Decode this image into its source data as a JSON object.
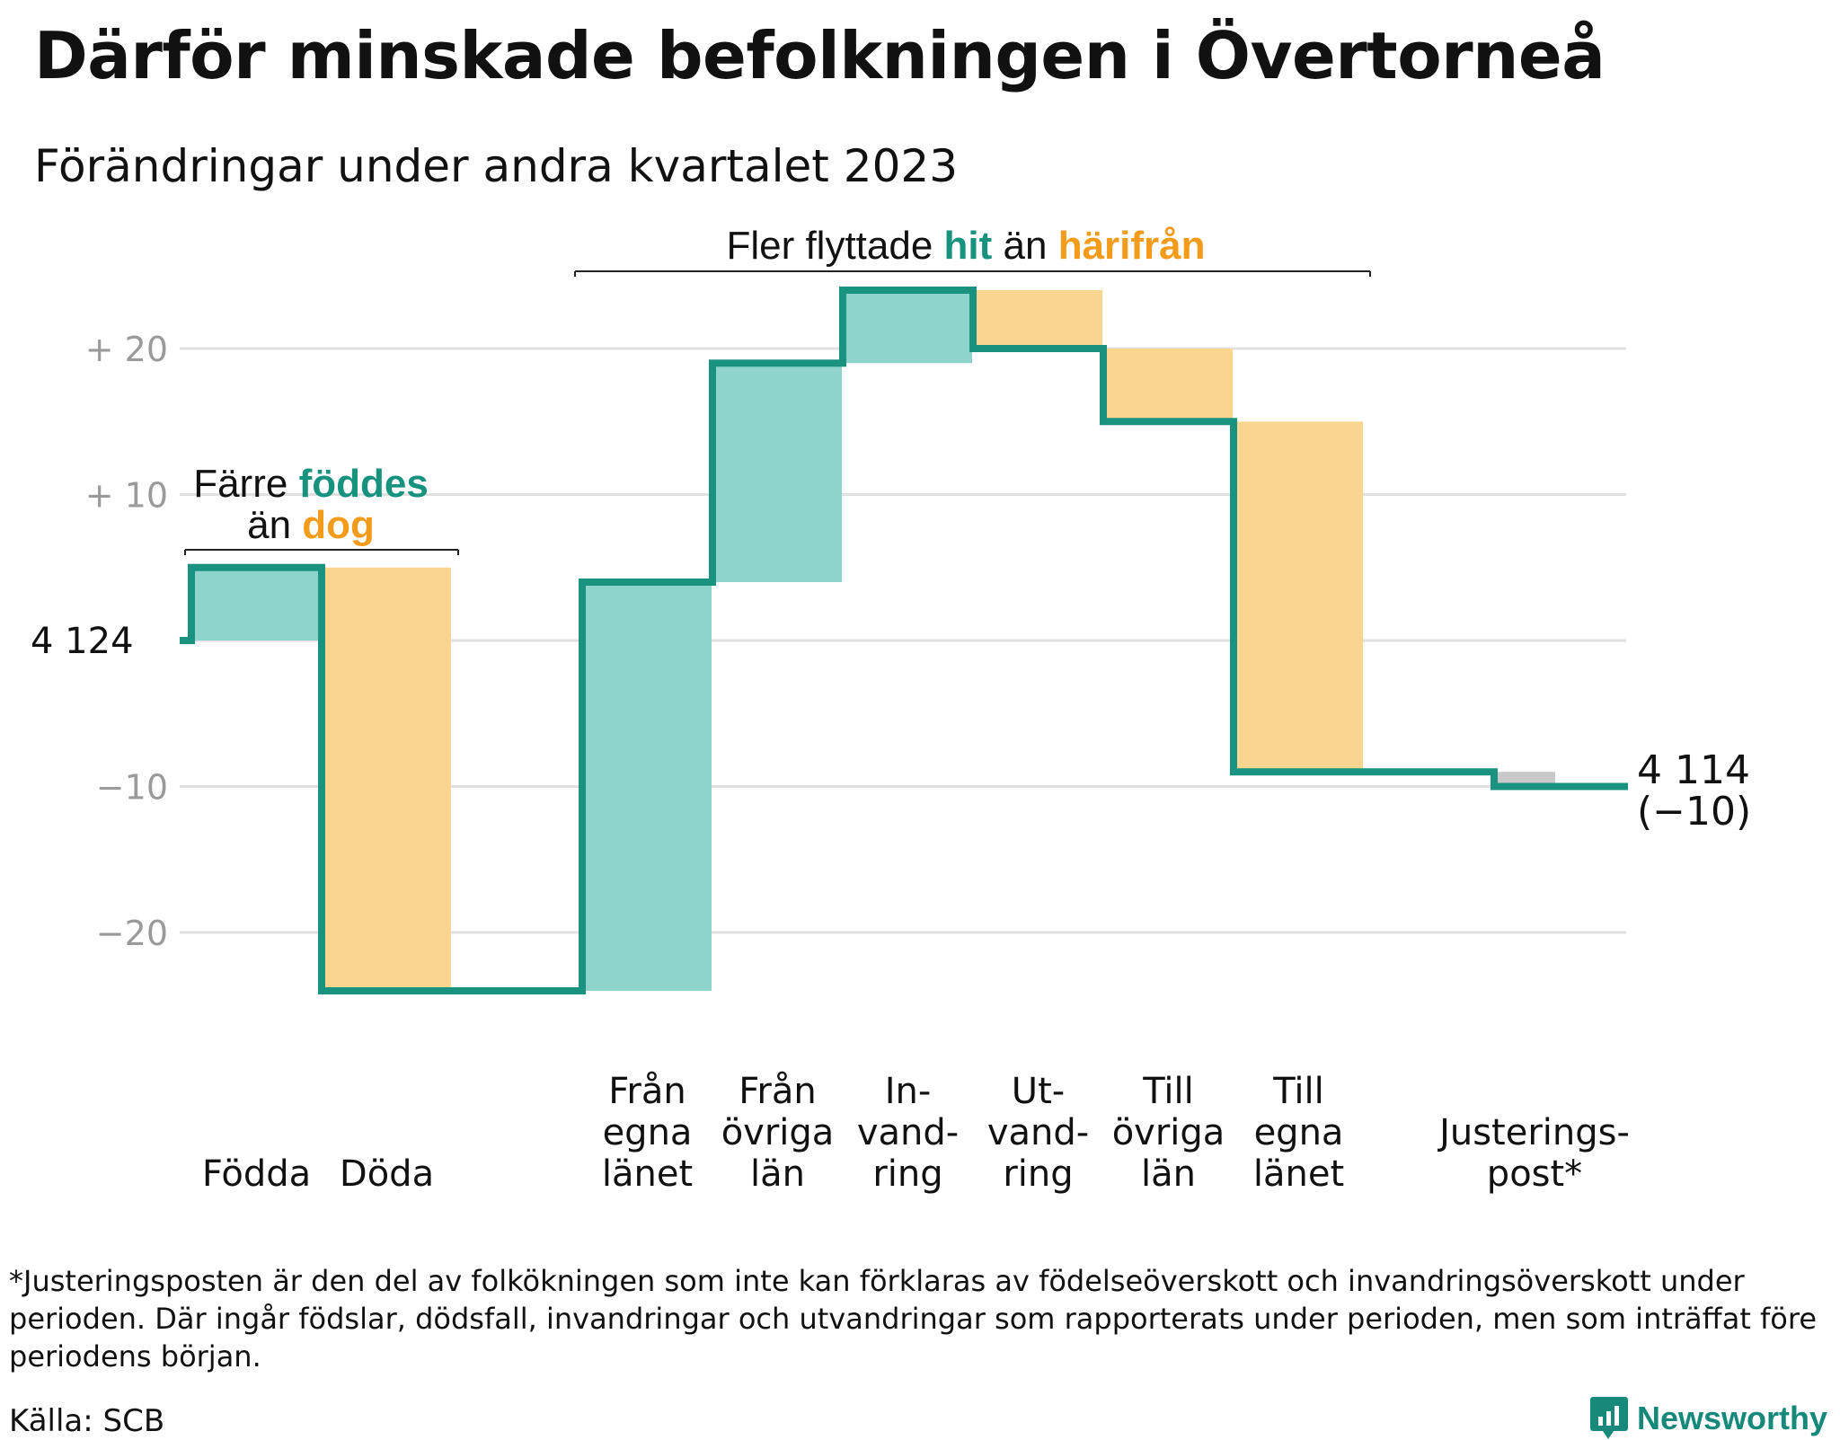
{
  "title": "Därför minskade befolkningen i Övertorneå",
  "subtitle": "Förändringar under andra kvartalet 2023",
  "colors": {
    "increase_fill": "#8ed4cc",
    "decrease_fill": "#fad58f",
    "adjustment_fill": "#c9c9c9",
    "step_line": "#1a9280",
    "teal_text": "#16927f",
    "orange_text": "#f39b1b",
    "grid": "#e0e0e0",
    "tick_text": "#9a9a9a"
  },
  "chart_data": {
    "type": "waterfall",
    "start_value": 4124,
    "start_label": "4  124",
    "end_label_value": "4 114",
    "end_label_change": "(−10)",
    "y_ticks": [
      {
        "value": 20,
        "label": "+  20"
      },
      {
        "value": 10,
        "label": "+  10"
      },
      {
        "value": -10,
        "label": "−10"
      },
      {
        "value": -20,
        "label": "−20"
      }
    ],
    "ylim": [
      -26,
      27
    ],
    "steps": [
      {
        "id": "fodda",
        "label_lines": [
          "Födda"
        ],
        "change": 5,
        "kind": "increase"
      },
      {
        "id": "doda",
        "label_lines": [
          "Döda"
        ],
        "change": -29,
        "kind": "decrease"
      },
      {
        "id": "gap",
        "label_lines": [],
        "change": 0,
        "kind": "spacer"
      },
      {
        "id": "fran-egna-lanet",
        "label_lines": [
          "Från",
          "egna",
          "länet"
        ],
        "change": 28,
        "kind": "increase"
      },
      {
        "id": "fran-ovriga-lan",
        "label_lines": [
          "Från",
          "övriga",
          "län"
        ],
        "change": 15,
        "kind": "increase"
      },
      {
        "id": "invandring",
        "label_lines": [
          "In-",
          "vand-",
          "ring"
        ],
        "change": 5,
        "kind": "increase"
      },
      {
        "id": "utvandring",
        "label_lines": [
          "Ut-",
          "vand-",
          "ring"
        ],
        "change": -4,
        "kind": "decrease"
      },
      {
        "id": "till-ovriga-lan",
        "label_lines": [
          "Till",
          "övriga",
          "län"
        ],
        "change": -5,
        "kind": "decrease"
      },
      {
        "id": "till-egna-lanet",
        "label_lines": [
          "Till",
          "egna",
          "länet"
        ],
        "change": -24,
        "kind": "decrease"
      },
      {
        "id": "gap2",
        "label_lines": [],
        "change": 0,
        "kind": "spacer"
      },
      {
        "id": "justeringspost",
        "label_lines": [
          "Justerings-",
          "post*"
        ],
        "change": -1,
        "kind": "adjustment"
      }
    ],
    "annotations": [
      {
        "id": "birth-death",
        "lines": [
          [
            {
              "text": "Färre ",
              "style": "plain"
            },
            {
              "text": "föddes",
              "style": "teal"
            }
          ],
          [
            {
              "text": "än ",
              "style": "plain"
            },
            {
              "text": "dog",
              "style": "orange"
            }
          ]
        ]
      },
      {
        "id": "migration",
        "lines": [
          [
            {
              "text": "Fler flyttade ",
              "style": "plain"
            },
            {
              "text": "hit",
              "style": "teal"
            },
            {
              "text": "  än ",
              "style": "plain"
            },
            {
              "text": "härifrån",
              "style": "orange"
            }
          ]
        ]
      }
    ]
  },
  "footnote": "*Justeringsposten är den del av folkökningen som inte kan förklaras av födelseöverskott och invandringsöverskott under perioden. Där ingår födslar, dödsfall, invandringar och utvandringar som rapporterats under perioden, men som inträffat före periodens början.",
  "source": "Källa: SCB",
  "brand": "Newsworthy"
}
